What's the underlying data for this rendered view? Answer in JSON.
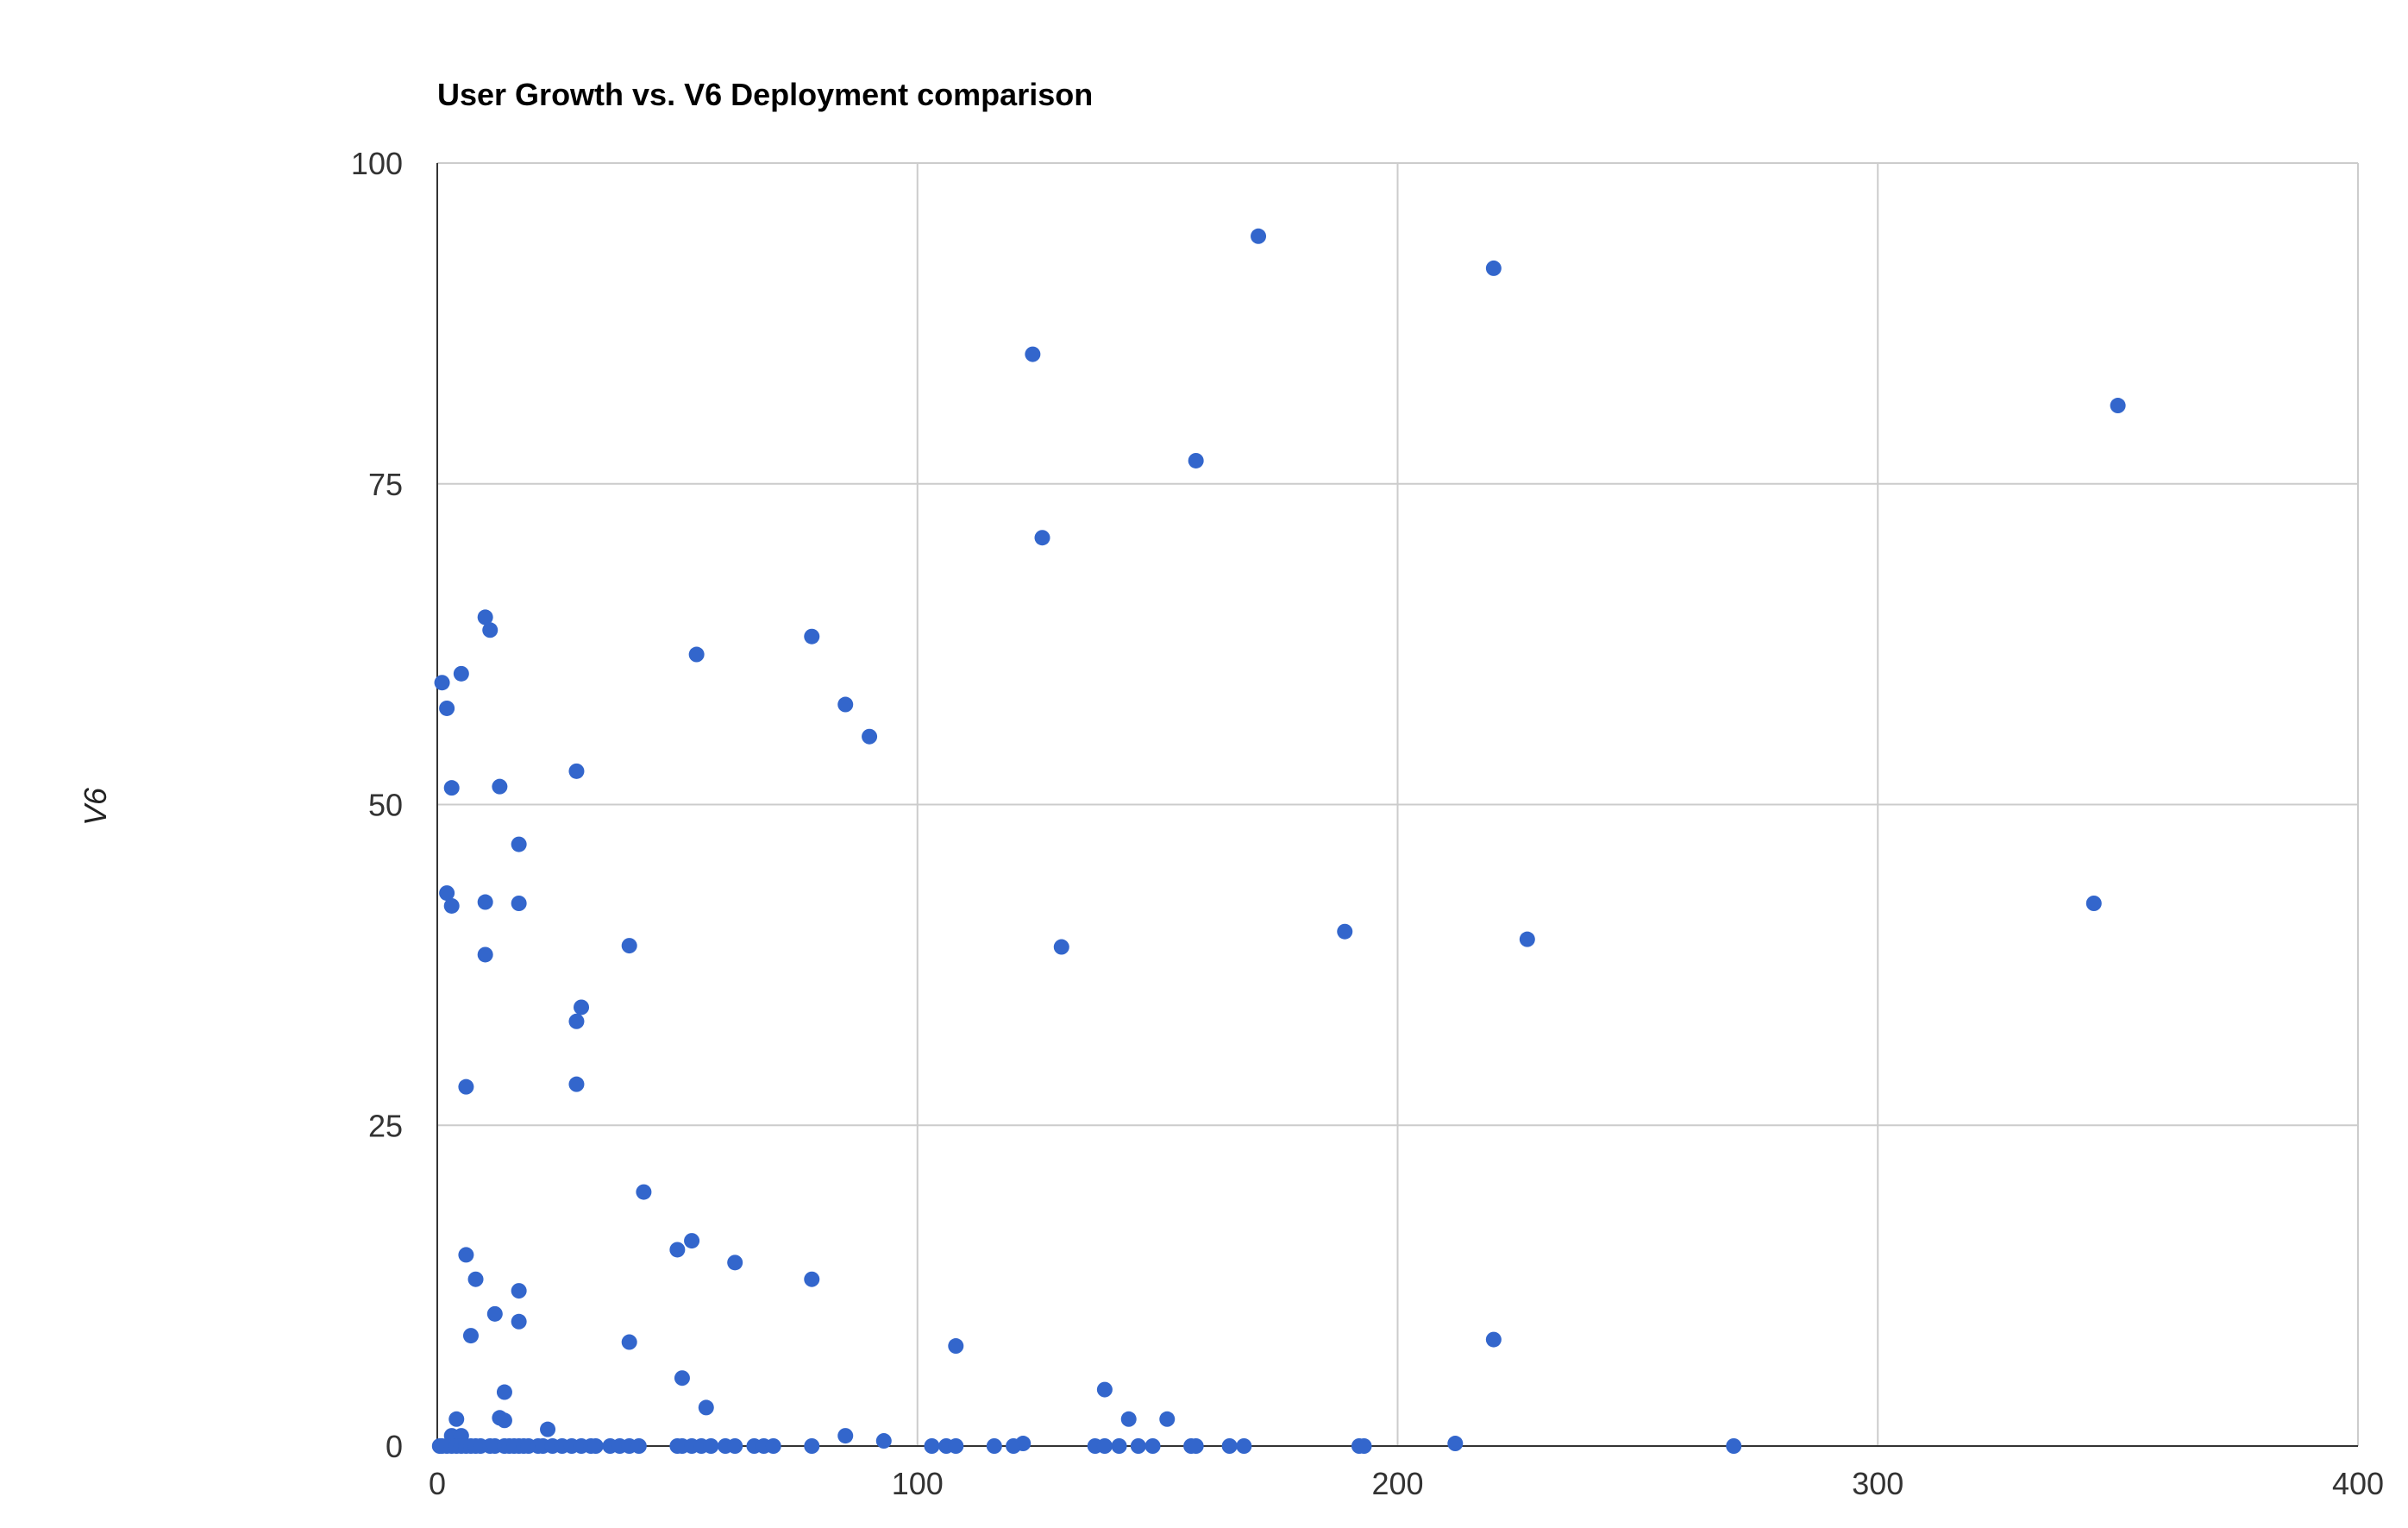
{
  "chart_data": {
    "type": "scatter",
    "title": "User Growth vs. V6 Deployment comparison",
    "xlabel": "",
    "ylabel": "V6",
    "xlim": [
      0,
      400
    ],
    "ylim": [
      0,
      100
    ],
    "xticks": [
      "0",
      "100",
      "200",
      "300",
      "400"
    ],
    "yticks": [
      "0",
      "25",
      "50",
      "75",
      "100"
    ],
    "grid": true,
    "legend": "none",
    "marker_color": "#3366cc",
    "series": [
      {
        "points": [
          [
            171,
            94.3
          ],
          [
            220,
            91.8
          ],
          [
            124,
            85.1
          ],
          [
            350,
            81.1
          ],
          [
            158,
            76.8
          ],
          [
            126,
            70.8
          ],
          [
            10,
            64.6
          ],
          [
            11,
            63.6
          ],
          [
            78,
            63.1
          ],
          [
            54,
            61.7
          ],
          [
            5,
            60.2
          ],
          [
            1,
            59.5
          ],
          [
            2,
            57.5
          ],
          [
            85,
            57.8
          ],
          [
            90,
            55.3
          ],
          [
            29,
            52.6
          ],
          [
            3,
            51.3
          ],
          [
            13,
            51.4
          ],
          [
            17,
            46.9
          ],
          [
            2,
            43.1
          ],
          [
            3,
            42.1
          ],
          [
            10,
            42.4
          ],
          [
            17,
            42.3
          ],
          [
            345,
            42.3
          ],
          [
            189,
            40.1
          ],
          [
            227,
            39.5
          ],
          [
            40,
            39.0
          ],
          [
            130,
            38.9
          ],
          [
            10,
            38.3
          ],
          [
            30,
            34.2
          ],
          [
            29,
            33.1
          ],
          [
            6,
            28.0
          ],
          [
            29,
            28.2
          ],
          [
            43,
            19.8
          ],
          [
            53,
            16.0
          ],
          [
            50,
            15.3
          ],
          [
            6,
            14.9
          ],
          [
            62,
            14.3
          ],
          [
            8,
            13.0
          ],
          [
            78,
            13.0
          ],
          [
            17,
            12.1
          ],
          [
            12,
            10.3
          ],
          [
            17,
            9.7
          ],
          [
            7,
            8.6
          ],
          [
            220,
            8.3
          ],
          [
            40,
            8.1
          ],
          [
            108,
            7.8
          ],
          [
            51,
            5.3
          ],
          [
            139,
            4.4
          ],
          [
            14,
            4.2
          ],
          [
            56,
            3.0
          ],
          [
            4,
            2.1
          ],
          [
            13,
            2.2
          ],
          [
            14,
            2.0
          ],
          [
            144,
            2.1
          ],
          [
            152,
            2.1
          ],
          [
            23,
            1.3
          ],
          [
            85,
            0.8
          ],
          [
            3,
            0.8
          ],
          [
            5,
            0.8
          ],
          [
            93,
            0.4
          ],
          [
            212,
            0.2
          ],
          [
            0.5,
            0
          ],
          [
            1,
            0
          ],
          [
            2,
            0
          ],
          [
            3,
            0
          ],
          [
            4,
            0
          ],
          [
            5,
            0
          ],
          [
            6,
            0
          ],
          [
            7,
            0
          ],
          [
            8,
            0
          ],
          [
            9,
            0
          ],
          [
            11,
            0
          ],
          [
            12,
            0
          ],
          [
            14,
            0
          ],
          [
            15,
            0
          ],
          [
            16,
            0
          ],
          [
            17,
            0
          ],
          [
            18,
            0
          ],
          [
            19,
            0
          ],
          [
            21,
            0
          ],
          [
            22,
            0
          ],
          [
            24,
            0
          ],
          [
            26,
            0
          ],
          [
            28,
            0
          ],
          [
            30,
            0
          ],
          [
            32,
            0
          ],
          [
            33,
            0
          ],
          [
            36,
            0
          ],
          [
            38,
            0
          ],
          [
            40,
            0
          ],
          [
            42,
            0
          ],
          [
            50,
            0
          ],
          [
            51,
            0
          ],
          [
            53,
            0
          ],
          [
            55,
            0
          ],
          [
            57,
            0
          ],
          [
            60,
            0
          ],
          [
            62,
            0
          ],
          [
            66,
            0
          ],
          [
            68,
            0
          ],
          [
            70,
            0
          ],
          [
            78,
            0
          ],
          [
            103,
            0
          ],
          [
            106,
            0
          ],
          [
            108,
            0
          ],
          [
            116,
            0
          ],
          [
            120,
            0
          ],
          [
            122,
            0.2
          ],
          [
            137,
            0
          ],
          [
            139,
            0
          ],
          [
            142,
            0
          ],
          [
            146,
            0
          ],
          [
            149,
            0
          ],
          [
            157,
            0
          ],
          [
            158,
            0
          ],
          [
            165,
            0
          ],
          [
            168,
            0
          ],
          [
            192,
            0
          ],
          [
            193,
            0
          ],
          [
            270,
            0
          ]
        ]
      }
    ]
  }
}
